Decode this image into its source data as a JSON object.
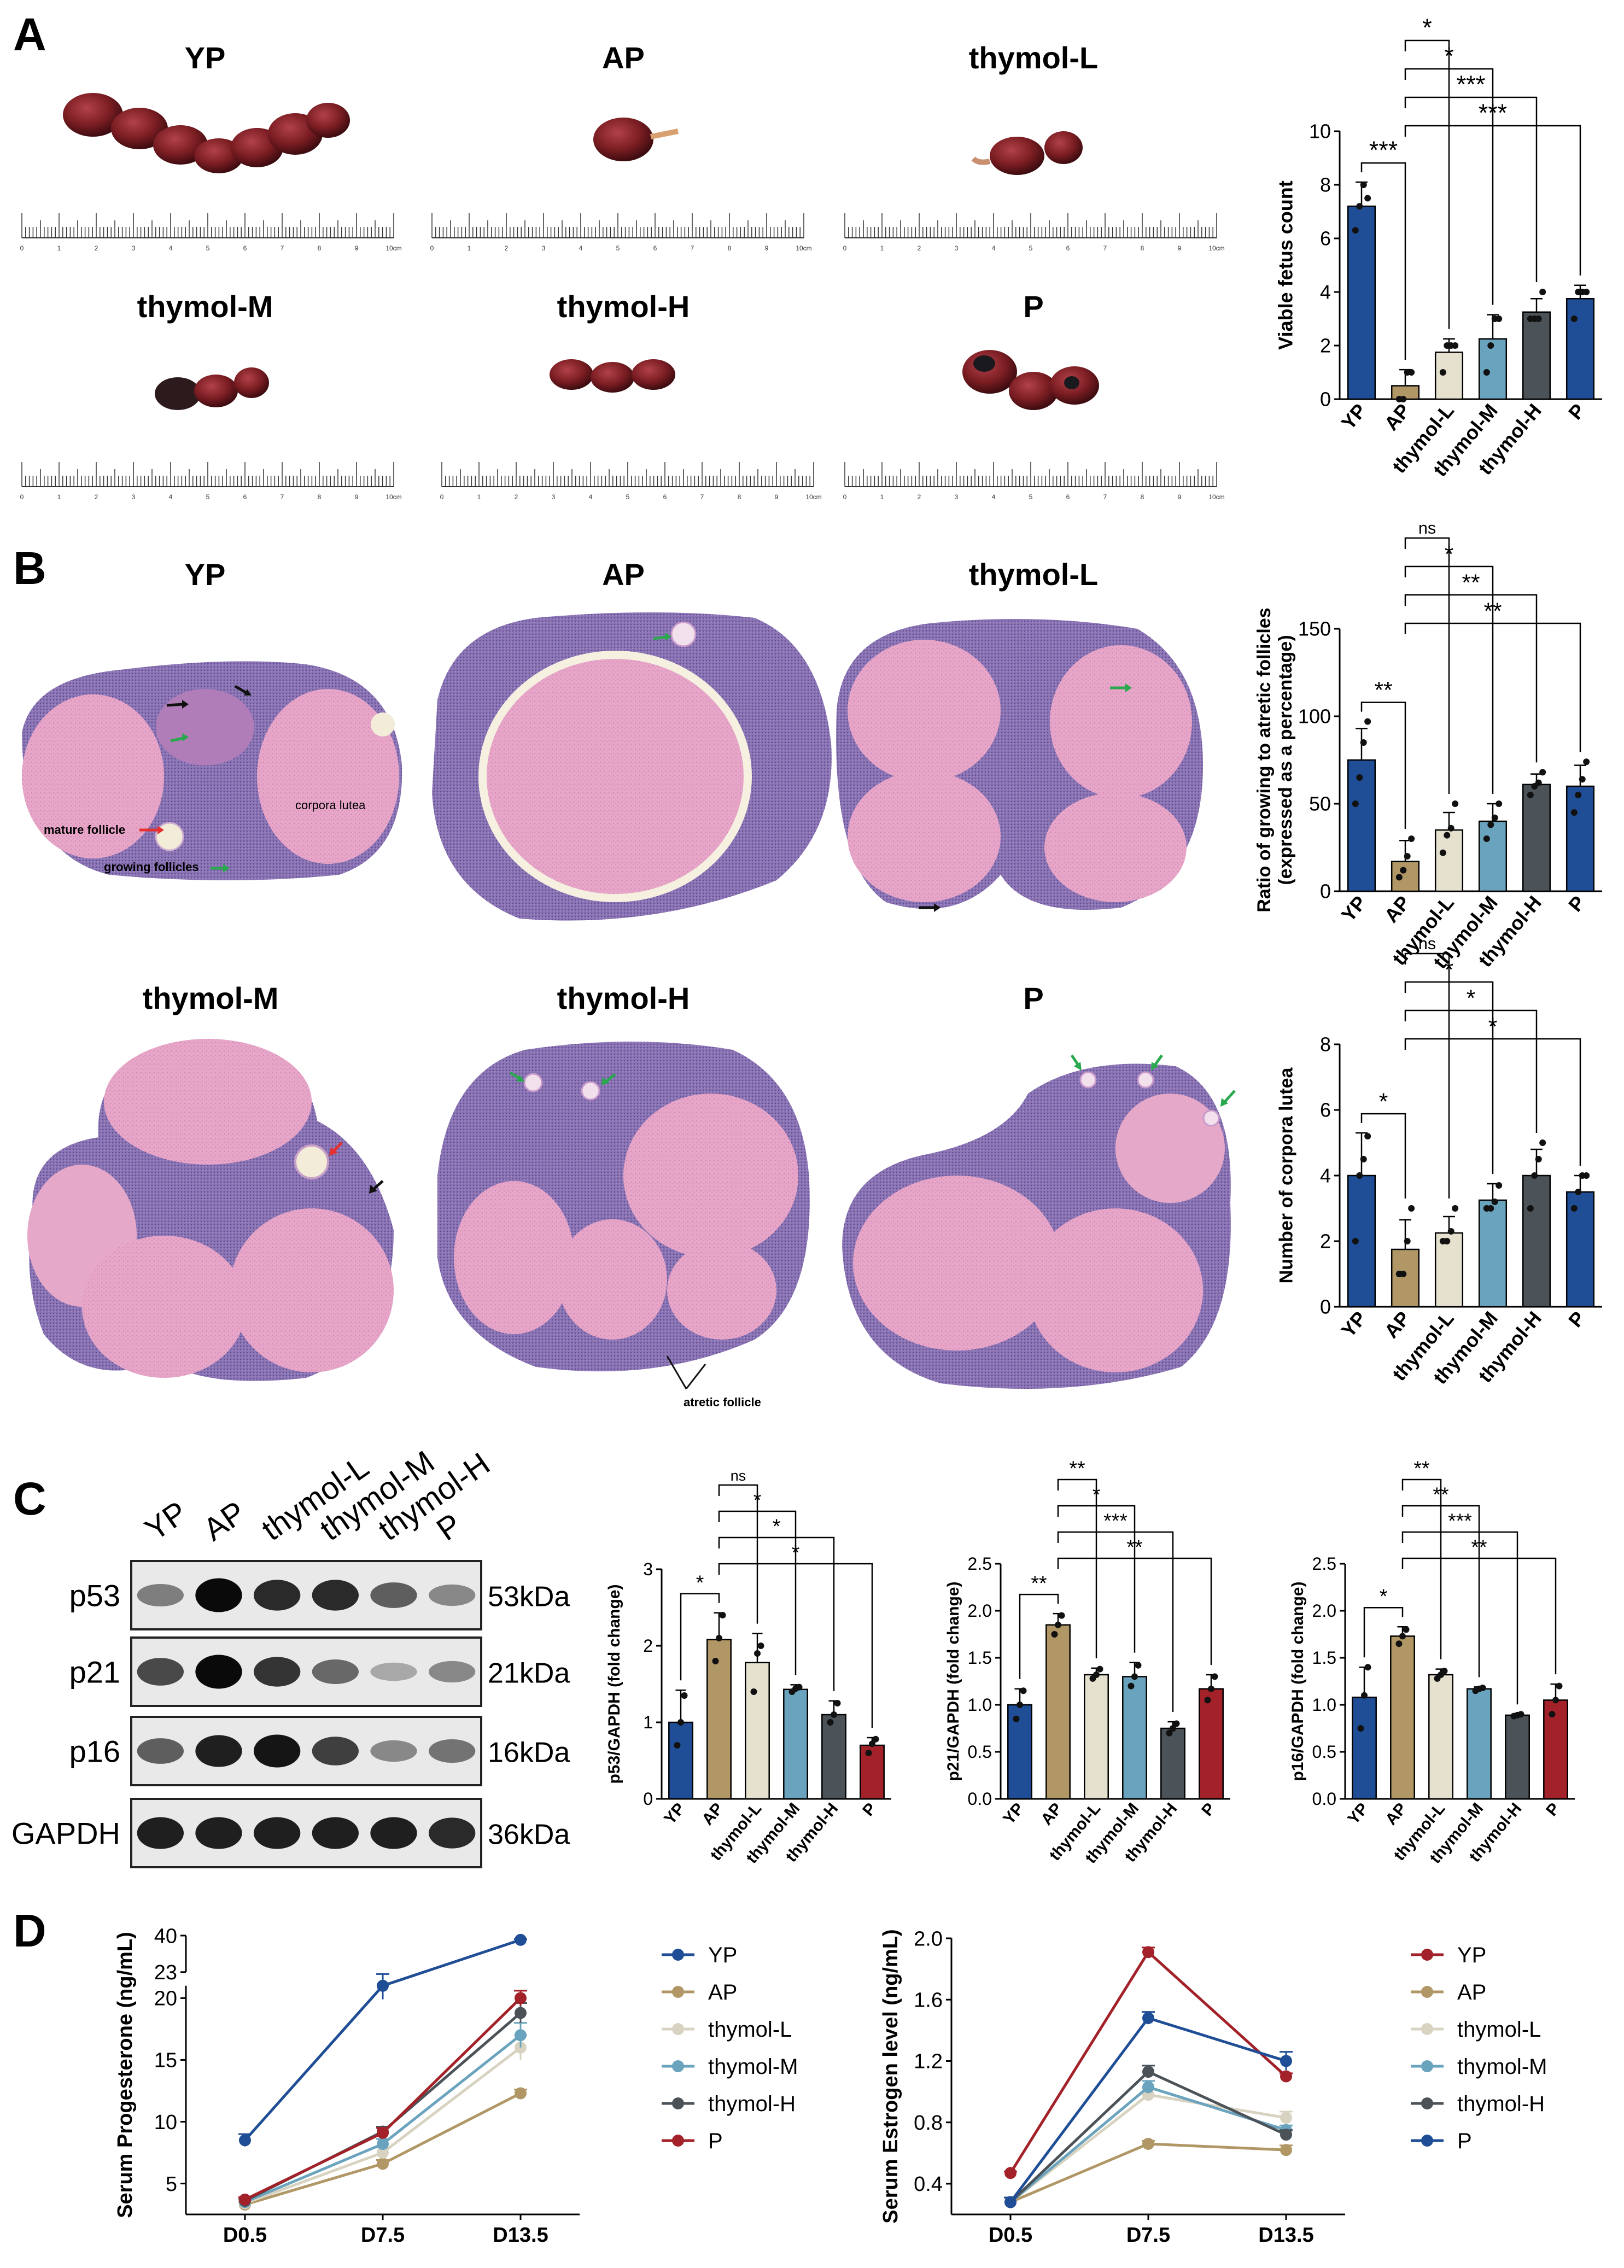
{
  "panels": {
    "A": "A",
    "B": "B",
    "C": "C",
    "D": "D"
  },
  "colors": {
    "YP": "#1f4e96",
    "AP": "#b19766",
    "thymolL": "#e6e1cf",
    "thymolM": "#6aa3bd",
    "thymolH": "#4b5359",
    "P_bar": "#1f4e96",
    "P_red": "#a32128",
    "tissue_red": "#7a1d22",
    "he_pink": "#e8a7c9",
    "he_purple": "#7a63a8"
  },
  "panelA": {
    "labels": [
      "YP",
      "AP",
      "thymol-L",
      "thymol-M",
      "thymol-H",
      "P"
    ],
    "ruler_ticks": [
      "0",
      "1",
      "2",
      "3",
      "4",
      "5",
      "6",
      "7",
      "8",
      "9",
      "10cm"
    ]
  },
  "panelB": {
    "labels": [
      "YP",
      "AP",
      "thymol-L",
      "thymol-M",
      "thymol-H",
      "P"
    ],
    "annotations": {
      "corpora_lutea": "corpora lutea",
      "mature_follicle": "mature follicle",
      "growing_follicles": "growing follicles",
      "atretic_follicle": "atretic follicle"
    }
  },
  "panelC": {
    "lanes": [
      "YP",
      "AP",
      "thymol-L",
      "thymol-M",
      "thymol-H",
      "P"
    ],
    "proteins": [
      "p53",
      "p21",
      "p16",
      "GAPDH"
    ],
    "sizes": [
      "53kDa",
      "21kDa",
      "16kDa",
      "36kDa"
    ],
    "band_intensity": {
      "p53": [
        0.45,
        1.0,
        0.85,
        0.85,
        0.6,
        0.4
      ],
      "p21": [
        0.7,
        1.0,
        0.8,
        0.55,
        0.25,
        0.4
      ],
      "p16": [
        0.6,
        0.9,
        0.95,
        0.75,
        0.4,
        0.5
      ],
      "GAPDH": [
        0.9,
        0.9,
        0.9,
        0.9,
        0.9,
        0.85
      ]
    }
  },
  "chart_data": [
    {
      "id": "viable",
      "type": "bar",
      "categories": [
        "YP",
        "AP",
        "thymol-L",
        "thymol-M",
        "thymol-H",
        "P"
      ],
      "values": [
        7.2,
        0.5,
        1.75,
        2.25,
        3.25,
        3.75
      ],
      "errors": [
        0.9,
        0.6,
        0.5,
        0.9,
        0.5,
        0.5
      ],
      "points": [
        [
          6.3,
          7.2,
          8.0,
          7.5
        ],
        [
          0,
          0,
          1,
          1
        ],
        [
          1,
          2,
          2,
          2
        ],
        [
          1,
          2,
          3,
          3
        ],
        [
          3,
          3,
          3,
          4
        ],
        [
          3,
          4,
          4,
          4
        ]
      ],
      "ylabel": "Viable fetus count",
      "ylim": [
        0,
        10
      ],
      "yticks": [
        "0",
        "2",
        "4",
        "6",
        "8",
        "10"
      ],
      "sig": [
        {
          "from": 0,
          "to": 1,
          "label": "***"
        },
        {
          "from": 1,
          "to": 2,
          "label": "*"
        },
        {
          "from": 1,
          "to": 3,
          "label": "*"
        },
        {
          "from": 1,
          "to": 4,
          "label": "***"
        },
        {
          "from": 1,
          "to": 5,
          "label": "***"
        }
      ]
    },
    {
      "id": "ratio",
      "type": "bar",
      "categories": [
        "YP",
        "AP",
        "thymol-L",
        "thymol-M",
        "thymol-H",
        "P"
      ],
      "values": [
        75,
        17,
        35,
        40,
        61,
        60
      ],
      "errors": [
        18,
        12,
        10,
        10,
        6,
        12
      ],
      "points": [
        [
          50,
          65,
          85,
          97
        ],
        [
          8,
          12,
          20,
          30
        ],
        [
          22,
          32,
          36,
          50
        ],
        [
          30,
          38,
          42,
          50
        ],
        [
          55,
          60,
          62,
          68
        ],
        [
          45,
          55,
          64,
          74
        ]
      ],
      "ylabel": "Ratio of growing to atretic follicles",
      "ylabel2": "(expressed as a percentage)",
      "ylim": [
        0,
        150
      ],
      "yticks": [
        "0",
        "50",
        "100",
        "150"
      ],
      "sig": [
        {
          "from": 0,
          "to": 1,
          "label": "**"
        },
        {
          "from": 1,
          "to": 2,
          "label": "ns"
        },
        {
          "from": 1,
          "to": 3,
          "label": "*"
        },
        {
          "from": 1,
          "to": 4,
          "label": "**"
        },
        {
          "from": 1,
          "to": 5,
          "label": "**"
        }
      ]
    },
    {
      "id": "corpora",
      "type": "bar",
      "categories": [
        "YP",
        "AP",
        "thymol-L",
        "thymol-M",
        "thymol-H",
        "P"
      ],
      "values": [
        4.0,
        1.75,
        2.25,
        3.25,
        4.0,
        3.5
      ],
      "errors": [
        1.3,
        0.9,
        0.5,
        0.5,
        0.8,
        0.5
      ],
      "points": [
        [
          2,
          4,
          4.5,
          5.2
        ],
        [
          1,
          1,
          2,
          3
        ],
        [
          2,
          2,
          2.3,
          3
        ],
        [
          3,
          3,
          3.2,
          3.7
        ],
        [
          3,
          4,
          4.5,
          5
        ],
        [
          3,
          3.5,
          4,
          4
        ]
      ],
      "ylabel": "Number of corpora lutea",
      "ylim": [
        0,
        8
      ],
      "yticks": [
        "0",
        "2",
        "4",
        "6",
        "8"
      ],
      "sig": [
        {
          "from": 0,
          "to": 1,
          "label": "*"
        },
        {
          "from": 1,
          "to": 2,
          "label": "ns"
        },
        {
          "from": 1,
          "to": 3,
          "label": "*"
        },
        {
          "from": 1,
          "to": 4,
          "label": "*"
        },
        {
          "from": 1,
          "to": 5,
          "label": "*"
        }
      ]
    },
    {
      "id": "p53",
      "type": "bar",
      "categories": [
        "YP",
        "AP",
        "thymol-L",
        "thymol-M",
        "thymol-H",
        "P"
      ],
      "values": [
        1.0,
        2.08,
        1.78,
        1.43,
        1.1,
        0.7
      ],
      "errors": [
        0.42,
        0.35,
        0.38,
        0.06,
        0.18,
        0.1
      ],
      "points": [
        [
          0.7,
          1.0,
          1.35
        ],
        [
          1.8,
          2.1,
          2.4
        ],
        [
          1.4,
          1.9,
          2.0
        ],
        [
          1.4,
          1.44,
          1.46
        ],
        [
          1.0,
          1.1,
          1.25
        ],
        [
          0.6,
          0.72,
          0.78
        ]
      ],
      "ylabel": "p53/GAPDH (fold change)",
      "ylim": [
        0,
        3
      ],
      "yticks": [
        "0",
        "1",
        "2",
        "3"
      ],
      "sig": [
        {
          "from": 0,
          "to": 1,
          "label": "*"
        },
        {
          "from": 1,
          "to": 2,
          "label": "ns"
        },
        {
          "from": 1,
          "to": 3,
          "label": "*"
        },
        {
          "from": 1,
          "to": 4,
          "label": "*"
        },
        {
          "from": 1,
          "to": 5,
          "label": "*"
        }
      ]
    },
    {
      "id": "p21",
      "type": "bar",
      "categories": [
        "YP",
        "AP",
        "thymol-L",
        "thymol-M",
        "thymol-H",
        "P"
      ],
      "values": [
        1.0,
        1.85,
        1.32,
        1.3,
        0.75,
        1.17
      ],
      "errors": [
        0.17,
        0.12,
        0.07,
        0.15,
        0.07,
        0.15
      ],
      "points": [
        [
          0.85,
          1.0,
          1.15
        ],
        [
          1.75,
          1.85,
          1.95
        ],
        [
          1.28,
          1.32,
          1.38
        ],
        [
          1.2,
          1.3,
          1.42
        ],
        [
          0.7,
          0.75,
          0.8
        ],
        [
          1.05,
          1.17,
          1.3
        ]
      ],
      "ylabel": "p21/GAPDH (fold change)",
      "ylim": [
        0,
        2.5
      ],
      "yticks": [
        "0.0",
        "0.5",
        "1.0",
        "1.5",
        "2.0",
        "2.5"
      ],
      "sig": [
        {
          "from": 0,
          "to": 1,
          "label": "**"
        },
        {
          "from": 1,
          "to": 2,
          "label": "**"
        },
        {
          "from": 1,
          "to": 3,
          "label": "*"
        },
        {
          "from": 1,
          "to": 4,
          "label": "***"
        },
        {
          "from": 1,
          "to": 5,
          "label": "**"
        }
      ]
    },
    {
      "id": "p16",
      "type": "bar",
      "categories": [
        "YP",
        "AP",
        "thymol-L",
        "thymol-M",
        "thymol-H",
        "P"
      ],
      "values": [
        1.08,
        1.73,
        1.32,
        1.17,
        0.89,
        1.05
      ],
      "errors": [
        0.32,
        0.1,
        0.06,
        0.02,
        0.01,
        0.17
      ],
      "points": [
        [
          0.75,
          1.1,
          1.4
        ],
        [
          1.65,
          1.73,
          1.8
        ],
        [
          1.28,
          1.32,
          1.36
        ],
        [
          1.15,
          1.17,
          1.18
        ],
        [
          0.88,
          0.89,
          0.9
        ],
        [
          0.9,
          1.05,
          1.2
        ]
      ],
      "ylabel": "p16/GAPDH (fold change)",
      "ylim": [
        0,
        2.5
      ],
      "yticks": [
        "0.0",
        "0.5",
        "1.0",
        "1.5",
        "2.0",
        "2.5"
      ],
      "sig": [
        {
          "from": 0,
          "to": 1,
          "label": "*"
        },
        {
          "from": 1,
          "to": 2,
          "label": "**"
        },
        {
          "from": 1,
          "to": 3,
          "label": "**"
        },
        {
          "from": 1,
          "to": 4,
          "label": "***"
        },
        {
          "from": 1,
          "to": 5,
          "label": "**"
        }
      ]
    },
    {
      "id": "progesterone",
      "type": "line",
      "x": [
        "D0.5",
        "D7.5",
        "D13.5"
      ],
      "ylabel": "Serum Progesterone (ng/mL)",
      "yticks_low": [
        "5",
        "10",
        "15",
        "20"
      ],
      "yticks_high": [
        "23",
        "40"
      ],
      "ylim_low": [
        2.5,
        21
      ],
      "ylim_high": [
        23,
        40
      ],
      "series": [
        {
          "name": "YP",
          "color": "#1f4e96",
          "values": [
            8.5,
            21.0,
            38.0
          ],
          "errors": [
            0.5,
            1.1,
            0.3
          ]
        },
        {
          "name": "AP",
          "color": "#b19766",
          "values": [
            3.3,
            6.6,
            12.3
          ],
          "errors": [
            0.2,
            0.3,
            0.3
          ]
        },
        {
          "name": "thymol-L",
          "color": "#d8d3c1",
          "values": [
            3.4,
            7.5,
            16.0
          ],
          "errors": [
            0.2,
            0.4,
            1.0
          ]
        },
        {
          "name": "thymol-M",
          "color": "#6aa3bd",
          "values": [
            3.5,
            8.2,
            17.0
          ],
          "errors": [
            0.2,
            0.4,
            1.0
          ]
        },
        {
          "name": "thymol-H",
          "color": "#4b5359",
          "values": [
            3.6,
            9.2,
            18.8
          ],
          "errors": [
            0.2,
            0.4,
            0.8
          ]
        },
        {
          "name": "P",
          "color": "#a32128",
          "values": [
            3.7,
            9.1,
            20.0
          ],
          "errors": [
            0.2,
            0.4,
            0.6
          ]
        }
      ]
    },
    {
      "id": "estrogen",
      "type": "line",
      "x": [
        "D0.5",
        "D7.5",
        "D13.5"
      ],
      "ylabel": "Serum Estrogen level (ng/mL)",
      "ylim": [
        0.2,
        2.0
      ],
      "yticks": [
        "0.4",
        "0.8",
        "1.2",
        "1.6",
        "2.0"
      ],
      "series": [
        {
          "name": "YP",
          "color": "#a32128",
          "values": [
            0.47,
            1.91,
            1.1
          ],
          "errors": [
            0.01,
            0.03,
            0.02
          ]
        },
        {
          "name": "AP",
          "color": "#b19766",
          "values": [
            0.28,
            0.66,
            0.62
          ],
          "errors": [
            0.03,
            0.02,
            0.03
          ]
        },
        {
          "name": "thymol-L",
          "color": "#d8d3c1",
          "values": [
            0.28,
            0.98,
            0.83
          ],
          "errors": [
            0.03,
            0.04,
            0.04
          ]
        },
        {
          "name": "thymol-M",
          "color": "#6aa3bd",
          "values": [
            0.28,
            1.03,
            0.75
          ],
          "errors": [
            0.03,
            0.04,
            0.03
          ]
        },
        {
          "name": "thymol-H",
          "color": "#4b5359",
          "values": [
            0.28,
            1.13,
            0.72
          ],
          "errors": [
            0.03,
            0.04,
            0.03
          ]
        },
        {
          "name": "P",
          "color": "#1f4e96",
          "values": [
            0.28,
            1.48,
            1.2
          ],
          "errors": [
            0.03,
            0.04,
            0.06
          ]
        }
      ]
    }
  ]
}
